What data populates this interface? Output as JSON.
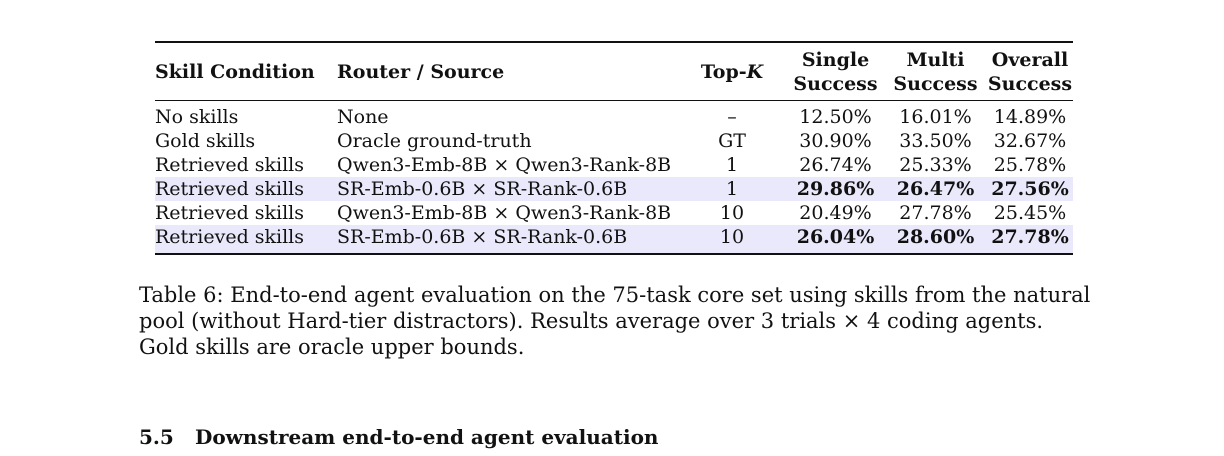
{
  "table": {
    "headers": {
      "skill_condition": "Skill Condition",
      "router_source": "Router / Source",
      "topk_prefix": "Top-",
      "topk_k": "K",
      "single_line1": "Single",
      "single_line2": "Success",
      "multi_line1": "Multi",
      "multi_line2": "Success",
      "overall_line1": "Overall",
      "overall_line2": "Success"
    },
    "rows": [
      {
        "condition": "No skills",
        "source": "None",
        "topk": "–",
        "single": "12.50%",
        "multi": "16.01%",
        "overall": "14.89%",
        "highlight": false
      },
      {
        "condition": "Gold skills",
        "source": "Oracle ground-truth",
        "topk": "GT",
        "single": "30.90%",
        "multi": "33.50%",
        "overall": "32.67%",
        "highlight": false
      },
      {
        "condition": "Retrieved skills",
        "source": "Qwen3-Emb-8B × Qwen3-Rank-8B",
        "topk": "1",
        "single": "26.74%",
        "multi": "25.33%",
        "overall": "25.78%",
        "highlight": false
      },
      {
        "condition": "Retrieved skills",
        "source": "SR-Emb-0.6B × SR-Rank-0.6B",
        "topk": "1",
        "single": "29.86%",
        "multi": "26.47%",
        "overall": "27.56%",
        "highlight": true
      },
      {
        "condition": "Retrieved skills",
        "source": "Qwen3-Emb-8B × Qwen3-Rank-8B",
        "topk": "10",
        "single": "20.49%",
        "multi": "27.78%",
        "overall": "25.45%",
        "highlight": false
      },
      {
        "condition": "Retrieved skills",
        "source": "SR-Emb-0.6B × SR-Rank-0.6B",
        "topk": "10",
        "single": "26.04%",
        "multi": "28.60%",
        "overall": "27.78%",
        "highlight": true
      }
    ],
    "highlight_color": "#e9e9fb"
  },
  "caption": "Table 6: End-to-end agent evaluation on the 75-task core set using skills from the natural pool (without Hard-tier distractors). Results average over 3 trials × 4 coding agents. Gold skills are oracle upper bounds.",
  "section": {
    "number": "5.5",
    "title": "Downstream end-to-end agent evaluation"
  }
}
